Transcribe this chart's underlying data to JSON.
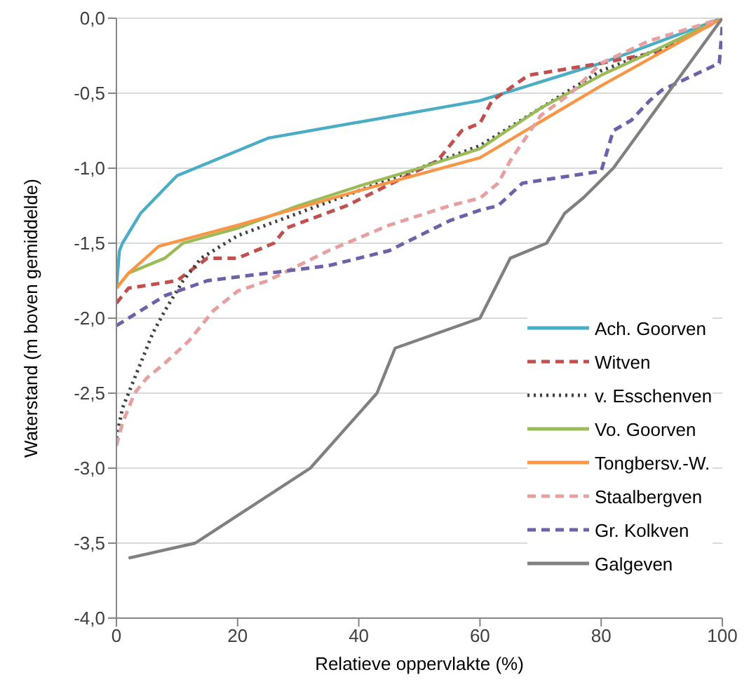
{
  "chart_data": {
    "type": "line",
    "xlabel": "Relatieve oppervlakte (%)",
    "ylabel": "Waterstand (m boven gemiddelde)",
    "xlim": [
      0,
      100
    ],
    "xticks": [
      0,
      20,
      40,
      60,
      80,
      100
    ],
    "ylim": [
      -4,
      0
    ],
    "yticks": [
      {
        "value": -4,
        "label": "-4,0"
      },
      {
        "value": -3.5,
        "label": "-3,5"
      },
      {
        "value": -3,
        "label": "-3,0"
      },
      {
        "value": -2.5,
        "label": "-2,5"
      },
      {
        "value": -2,
        "label": "-2,0"
      },
      {
        "value": -1.5,
        "label": "-1,5"
      },
      {
        "value": -1,
        "label": "-1,0"
      },
      {
        "value": -0.5,
        "label": "-0,5"
      },
      {
        "value": 0,
        "label": "0,0"
      }
    ],
    "grid": "y",
    "legend": "right",
    "marker": "none",
    "series": [
      {
        "name": "Ach. Goorven",
        "color": "#4bacc6",
        "line_style": "solid",
        "x": [
          0,
          0.5,
          1,
          4,
          10,
          25,
          60,
          80,
          100
        ],
        "values": [
          -1.8,
          -1.55,
          -1.5,
          -1.3,
          -1.05,
          -0.8,
          -0.55,
          -0.3,
          0
        ]
      },
      {
        "name": "Witven",
        "color": "#c0504d",
        "line_style": "dashed",
        "x": [
          0,
          2,
          10,
          15,
          20,
          26,
          28,
          38,
          48,
          53,
          57,
          60,
          62,
          68,
          80,
          90,
          100
        ],
        "values": [
          -1.9,
          -1.8,
          -1.75,
          -1.6,
          -1.6,
          -1.5,
          -1.4,
          -1.25,
          -1.05,
          -0.95,
          -0.75,
          -0.7,
          -0.55,
          -0.38,
          -0.3,
          -0.22,
          0
        ]
      },
      {
        "name": "v. Esschenven",
        "color": "#404040",
        "line_style": "dotted",
        "x": [
          0,
          1,
          3,
          6,
          8,
          11,
          14,
          20,
          30,
          40,
          50,
          60,
          70,
          80,
          90,
          100
        ],
        "values": [
          -2.8,
          -2.6,
          -2.4,
          -2.1,
          -1.95,
          -1.75,
          -1.6,
          -1.45,
          -1.3,
          -1.15,
          -1,
          -0.85,
          -0.6,
          -0.35,
          -0.2,
          0
        ]
      },
      {
        "name": "Vo. Goorven",
        "color": "#9bbb59",
        "line_style": "solid",
        "x": [
          0,
          2,
          8,
          11,
          20,
          30,
          40,
          50,
          60,
          70,
          80,
          87,
          100
        ],
        "values": [
          -1.8,
          -1.7,
          -1.6,
          -1.5,
          -1.4,
          -1.25,
          -1.12,
          -1,
          -0.87,
          -0.6,
          -0.38,
          -0.25,
          0
        ]
      },
      {
        "name": "Tongbersv.-W.",
        "color": "#f79646",
        "line_style": "solid",
        "x": [
          0,
          2,
          7,
          20,
          40,
          60,
          80,
          100
        ],
        "values": [
          -1.8,
          -1.7,
          -1.52,
          -1.38,
          -1.15,
          -0.93,
          -0.45,
          0
        ]
      },
      {
        "name": "Staalbergven",
        "color": "#e6a0a0",
        "line_style": "dashed",
        "x": [
          0,
          1,
          3,
          5,
          8,
          12,
          16,
          20,
          25,
          35,
          45,
          55,
          60,
          63,
          65,
          70,
          75,
          80,
          88,
          100
        ],
        "values": [
          -2.85,
          -2.7,
          -2.5,
          -2.4,
          -2.3,
          -2.15,
          -1.95,
          -1.82,
          -1.75,
          -1.55,
          -1.38,
          -1.25,
          -1.2,
          -1.1,
          -0.95,
          -0.65,
          -0.5,
          -0.3,
          -0.15,
          0
        ]
      },
      {
        "name": "Gr. Kolkven",
        "color": "#7060a8",
        "line_style": "dashed",
        "x": [
          0,
          4,
          8,
          15,
          25,
          35,
          45,
          55,
          60,
          63,
          67,
          80,
          82,
          85,
          88,
          90,
          99.5,
          100
        ],
        "values": [
          -2.05,
          -1.95,
          -1.85,
          -1.75,
          -1.7,
          -1.65,
          -1.55,
          -1.35,
          -1.28,
          -1.25,
          -1.1,
          -1.02,
          -0.75,
          -0.68,
          -0.55,
          -0.48,
          -0.3,
          -0.05
        ]
      },
      {
        "name": "Galgeven",
        "color": "#808080",
        "line_style": "solid",
        "x": [
          2,
          13,
          32,
          43,
          46,
          60,
          65,
          71,
          74,
          77,
          82,
          100
        ],
        "values": [
          -3.6,
          -3.5,
          -3,
          -2.5,
          -2.2,
          -2,
          -1.6,
          -1.5,
          -1.3,
          -1.2,
          -1,
          0
        ]
      }
    ]
  }
}
